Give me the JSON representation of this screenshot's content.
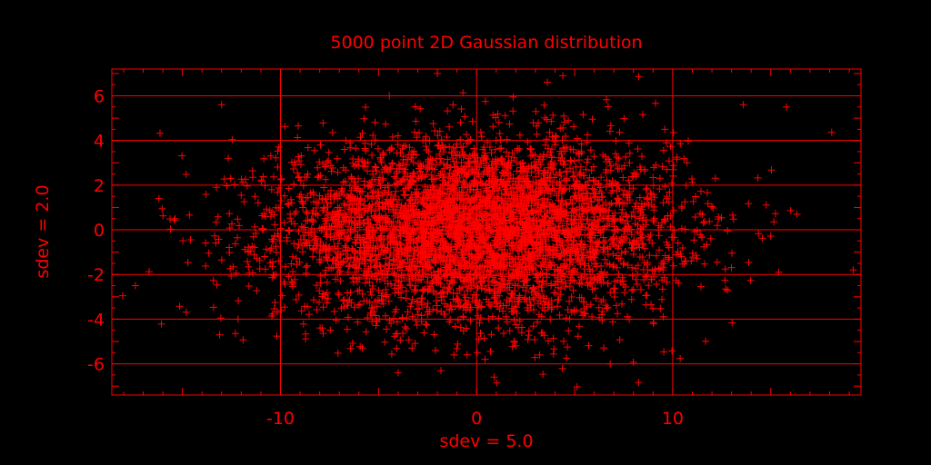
{
  "colors": {
    "background": "#000000",
    "foreground": "#ff0000"
  },
  "chart_data": {
    "type": "scatter",
    "title": "5000 point 2D Gaussian distribution",
    "xlabel": "sdev = 5.0",
    "ylabel": "sdev = 2.0",
    "xlim": [
      -18.6,
      19.6
    ],
    "ylim": [
      -7.4,
      7.2
    ],
    "xticks": [
      -10,
      0,
      10
    ],
    "yticks": [
      -6,
      -4,
      -2,
      0,
      2,
      4,
      6
    ],
    "grid": true,
    "marker": "plus",
    "series": [
      {
        "n": 5000,
        "distribution": "gaussian",
        "mean": [
          0,
          0
        ],
        "sdev": [
          5.0,
          2.0
        ],
        "outliers": [
          [
            13.6,
            5.6
          ],
          [
            -17.4,
            -2.5
          ],
          [
            15.8,
            5.5
          ],
          [
            -13.0,
            5.6
          ],
          [
            -16.2,
            1.4
          ],
          [
            19.2,
            -1.8
          ],
          [
            -2.0,
            7.0
          ],
          [
            4.4,
            6.9
          ],
          [
            -13.1,
            -4.7
          ],
          [
            15.4,
            -1.9
          ],
          [
            -4.0,
            -6.4
          ],
          [
            0.9,
            -6.6
          ]
        ]
      }
    ]
  }
}
